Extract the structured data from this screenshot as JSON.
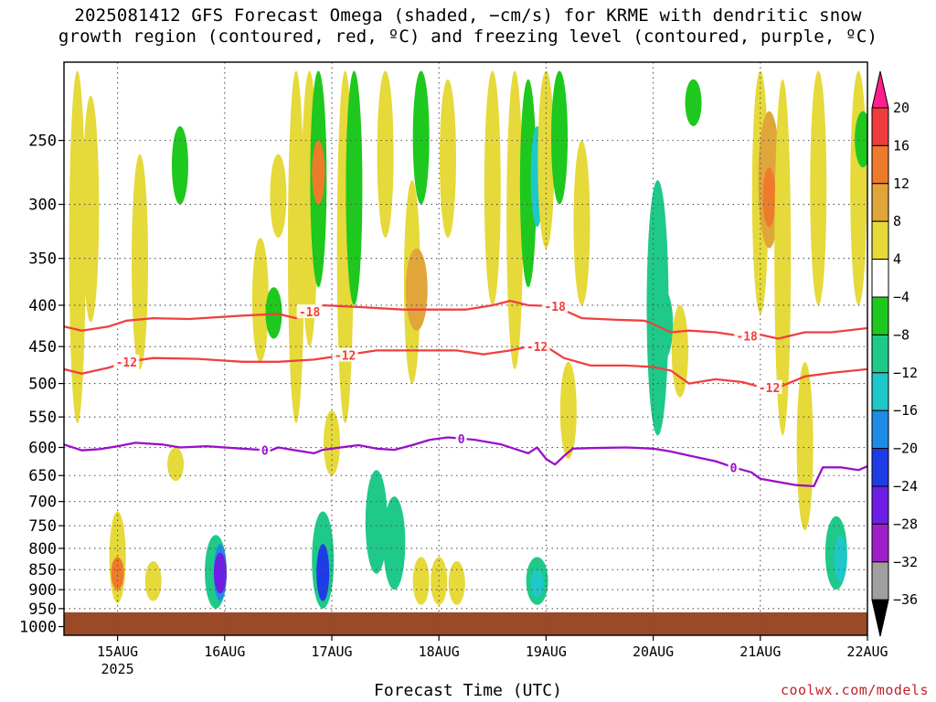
{
  "title": {
    "line1": "2025081412 GFS Forecast Omega (shaded, −cm/s) for KRME with dendritic snow",
    "line2": "growth region (contoured, red, ºC) and freezing level (contoured, purple, ºC)"
  },
  "credit": "coolwx.com/models",
  "chart_data": {
    "type": "heatmap",
    "xlabel": "Forecast Time (UTC)",
    "x_ticks": [
      {
        "label": "15AUG",
        "sublabel": "2025",
        "hour": 12
      },
      {
        "label": "16AUG",
        "hour": 36
      },
      {
        "label": "17AUG",
        "hour": 60
      },
      {
        "label": "18AUG",
        "hour": 84
      },
      {
        "label": "19AUG",
        "hour": 108
      },
      {
        "label": "20AUG",
        "hour": 132
      },
      {
        "label": "21AUG",
        "hour": 156
      },
      {
        "label": "22AUG",
        "hour": 180
      }
    ],
    "x_range_hours": [
      0,
      180
    ],
    "y_axis": "pressure (hPa)",
    "y_ticks": [
      250,
      300,
      350,
      400,
      450,
      500,
      550,
      600,
      650,
      700,
      750,
      800,
      850,
      900,
      950,
      1000
    ],
    "y_range": [
      200,
      1025
    ],
    "y_scale": "log",
    "grid": true,
    "colorbar": {
      "labels": [
        "20",
        "16",
        "12",
        "8",
        "4",
        "−4",
        "−8",
        "−12",
        "−16",
        "−20",
        "−24",
        "−28",
        "−32",
        "−36"
      ],
      "colors": [
        "#ff1e8c",
        "#f03c3c",
        "#ee7b2c",
        "#e0a63a",
        "#e6d93a",
        "#ffffff",
        "#1ec81e",
        "#1fc98a",
        "#1ec8c8",
        "#1e8ce6",
        "#1e3ce6",
        "#6e1ee6",
        "#a01ec8",
        "#a0a0a0",
        "#000000"
      ]
    },
    "shading": [
      {
        "hour": 3,
        "p_top": 205,
        "p_bot": 560,
        "value": 5
      },
      {
        "hour": 6,
        "p_top": 220,
        "p_bot": 420,
        "value": 5
      },
      {
        "hour": 12,
        "p_top": 720,
        "p_bot": 935,
        "value": 7
      },
      {
        "hour": 12,
        "p_top": 820,
        "p_bot": 900,
        "value": 14
      },
      {
        "hour": 17,
        "p_top": 260,
        "p_bot": 480,
        "value": 5
      },
      {
        "hour": 20,
        "p_top": 830,
        "p_bot": 930,
        "value": 5
      },
      {
        "hour": 25,
        "p_top": 600,
        "p_bot": 660,
        "value": 5
      },
      {
        "hour": 26,
        "p_top": 240,
        "p_bot": 300,
        "value": -5
      },
      {
        "hour": 34,
        "p_top": 770,
        "p_bot": 950,
        "value": -9
      },
      {
        "hour": 35,
        "p_top": 790,
        "p_bot": 930,
        "value": -17
      },
      {
        "hour": 35,
        "p_top": 810,
        "p_bot": 910,
        "value": -26
      },
      {
        "hour": 44,
        "p_top": 330,
        "p_bot": 470,
        "value": 5
      },
      {
        "hour": 47,
        "p_top": 380,
        "p_bot": 440,
        "value": -5
      },
      {
        "hour": 48,
        "p_top": 260,
        "p_bot": 330,
        "value": 5
      },
      {
        "hour": 52,
        "p_top": 205,
        "p_bot": 560,
        "value": 5
      },
      {
        "hour": 55,
        "p_top": 205,
        "p_bot": 450,
        "value": 6
      },
      {
        "hour": 57,
        "p_top": 205,
        "p_bot": 380,
        "value": -5
      },
      {
        "hour": 57,
        "p_top": 250,
        "p_bot": 300,
        "value": 12
      },
      {
        "hour": 58,
        "p_top": 720,
        "p_bot": 950,
        "value": -9
      },
      {
        "hour": 58,
        "p_top": 790,
        "p_bot": 930,
        "value": -22
      },
      {
        "hour": 60,
        "p_top": 540,
        "p_bot": 650,
        "value": 5
      },
      {
        "hour": 63,
        "p_top": 205,
        "p_bot": 560,
        "value": 5
      },
      {
        "hour": 65,
        "p_top": 205,
        "p_bot": 400,
        "value": -5
      },
      {
        "hour": 70,
        "p_top": 640,
        "p_bot": 860,
        "value": -10
      },
      {
        "hour": 72,
        "p_top": 205,
        "p_bot": 330,
        "value": 5
      },
      {
        "hour": 74,
        "p_top": 690,
        "p_bot": 900,
        "value": -8
      },
      {
        "hour": 78,
        "p_top": 280,
        "p_bot": 500,
        "value": 6
      },
      {
        "hour": 79,
        "p_top": 340,
        "p_bot": 430,
        "value": 10
      },
      {
        "hour": 80,
        "p_top": 205,
        "p_bot": 300,
        "value": -5
      },
      {
        "hour": 80,
        "p_top": 820,
        "p_bot": 940,
        "value": 6
      },
      {
        "hour": 84,
        "p_top": 820,
        "p_bot": 940,
        "value": 7
      },
      {
        "hour": 86,
        "p_top": 210,
        "p_bot": 330,
        "value": 5
      },
      {
        "hour": 88,
        "p_top": 830,
        "p_bot": 940,
        "value": 5
      },
      {
        "hour": 96,
        "p_top": 205,
        "p_bot": 400,
        "value": 5
      },
      {
        "hour": 101,
        "p_top": 205,
        "p_bot": 480,
        "value": 5
      },
      {
        "hour": 104,
        "p_top": 210,
        "p_bot": 380,
        "value": -6
      },
      {
        "hour": 106,
        "p_top": 240,
        "p_bot": 320,
        "value": -14
      },
      {
        "hour": 106,
        "p_top": 820,
        "p_bot": 940,
        "value": -9
      },
      {
        "hour": 106,
        "p_top": 850,
        "p_bot": 920,
        "value": -14
      },
      {
        "hour": 108,
        "p_top": 205,
        "p_bot": 340,
        "value": 5
      },
      {
        "hour": 111,
        "p_top": 205,
        "p_bot": 300,
        "value": -5
      },
      {
        "hour": 113,
        "p_top": 470,
        "p_bot": 620,
        "value": 5
      },
      {
        "hour": 116,
        "p_top": 250,
        "p_bot": 400,
        "value": 5
      },
      {
        "hour": 133,
        "p_top": 280,
        "p_bot": 580,
        "value": -8
      },
      {
        "hour": 134,
        "p_top": 380,
        "p_bot": 470,
        "value": -11
      },
      {
        "hour": 138,
        "p_top": 400,
        "p_bot": 520,
        "value": 6
      },
      {
        "hour": 141,
        "p_top": 210,
        "p_bot": 240,
        "value": -6
      },
      {
        "hour": 156,
        "p_top": 205,
        "p_bot": 410,
        "value": 5
      },
      {
        "hour": 158,
        "p_top": 230,
        "p_bot": 340,
        "value": 10
      },
      {
        "hour": 158,
        "p_top": 270,
        "p_bot": 320,
        "value": 13
      },
      {
        "hour": 161,
        "p_top": 210,
        "p_bot": 580,
        "value": 5
      },
      {
        "hour": 166,
        "p_top": 470,
        "p_bot": 760,
        "value": 5
      },
      {
        "hour": 169,
        "p_top": 205,
        "p_bot": 400,
        "value": 5
      },
      {
        "hour": 173,
        "p_top": 730,
        "p_bot": 900,
        "value": -9
      },
      {
        "hour": 174,
        "p_top": 770,
        "p_bot": 880,
        "value": -13
      },
      {
        "hour": 178,
        "p_top": 205,
        "p_bot": 400,
        "value": 5
      },
      {
        "hour": 179,
        "p_top": 230,
        "p_bot": 270,
        "value": -6
      }
    ],
    "ground": {
      "p_top": 960,
      "color": "#9b4a28"
    },
    "contours": [
      {
        "level": -18,
        "color": "#f04040",
        "label": "-18",
        "points": [
          [
            0,
            425
          ],
          [
            4,
            430
          ],
          [
            10,
            425
          ],
          [
            14,
            418
          ],
          [
            20,
            415
          ],
          [
            28,
            416
          ],
          [
            40,
            412
          ],
          [
            48,
            410
          ],
          [
            52,
            415
          ],
          [
            56,
            405
          ],
          [
            58,
            400
          ],
          [
            66,
            402
          ],
          [
            76,
            405
          ],
          [
            84,
            405
          ],
          [
            90,
            405
          ],
          [
            96,
            400
          ],
          [
            100,
            395
          ],
          [
            104,
            400
          ],
          [
            110,
            401
          ],
          [
            116,
            415
          ],
          [
            124,
            417
          ],
          [
            130,
            418
          ],
          [
            132,
            422
          ],
          [
            136,
            432
          ],
          [
            140,
            430
          ],
          [
            146,
            432
          ],
          [
            152,
            437
          ],
          [
            156,
            435
          ],
          [
            160,
            440
          ],
          [
            166,
            432
          ],
          [
            172,
            432
          ],
          [
            180,
            427
          ]
        ],
        "labels_at": [
          55,
          110,
          153
        ]
      },
      {
        "level": -12,
        "color": "#f04040",
        "label": "-12",
        "points": [
          [
            0,
            480
          ],
          [
            4,
            486
          ],
          [
            10,
            478
          ],
          [
            14,
            470
          ],
          [
            20,
            465
          ],
          [
            30,
            466
          ],
          [
            40,
            470
          ],
          [
            48,
            470
          ],
          [
            56,
            467
          ],
          [
            62,
            462
          ],
          [
            70,
            455
          ],
          [
            80,
            455
          ],
          [
            88,
            455
          ],
          [
            94,
            460
          ],
          [
            100,
            455
          ],
          [
            104,
            450
          ],
          [
            108,
            450
          ],
          [
            112,
            465
          ],
          [
            118,
            475
          ],
          [
            126,
            475
          ],
          [
            132,
            477
          ],
          [
            136,
            482
          ],
          [
            140,
            500
          ],
          [
            146,
            494
          ],
          [
            152,
            498
          ],
          [
            156,
            505
          ],
          [
            160,
            506
          ],
          [
            166,
            490
          ],
          [
            172,
            485
          ],
          [
            180,
            480
          ]
        ],
        "labels_at": [
          14,
          63,
          106,
          158
        ]
      },
      {
        "level": 0,
        "color": "#9a10c8",
        "label": "0",
        "points": [
          [
            0,
            595
          ],
          [
            4,
            605
          ],
          [
            8,
            603
          ],
          [
            12,
            598
          ],
          [
            16,
            592
          ],
          [
            22,
            595
          ],
          [
            26,
            600
          ],
          [
            32,
            598
          ],
          [
            38,
            601
          ],
          [
            44,
            604
          ],
          [
            46,
            606
          ],
          [
            48,
            600
          ],
          [
            52,
            605
          ],
          [
            56,
            610
          ],
          [
            58,
            604
          ],
          [
            62,
            600
          ],
          [
            66,
            596
          ],
          [
            70,
            602
          ],
          [
            74,
            604
          ],
          [
            78,
            596
          ],
          [
            82,
            587
          ],
          [
            86,
            583
          ],
          [
            92,
            587
          ],
          [
            98,
            595
          ],
          [
            102,
            605
          ],
          [
            104,
            610
          ],
          [
            106,
            600
          ],
          [
            108,
            620
          ],
          [
            110,
            630
          ],
          [
            112,
            615
          ],
          [
            114,
            602
          ],
          [
            118,
            601
          ],
          [
            126,
            600
          ],
          [
            132,
            602
          ],
          [
            136,
            607
          ],
          [
            140,
            614
          ],
          [
            146,
            624
          ],
          [
            150,
            635
          ],
          [
            154,
            644
          ],
          [
            156,
            656
          ],
          [
            160,
            662
          ],
          [
            164,
            668
          ],
          [
            168,
            670
          ],
          [
            170,
            635
          ],
          [
            174,
            635
          ],
          [
            178,
            640
          ],
          [
            180,
            633
          ]
        ],
        "labels_at": [
          45,
          89,
          150
        ]
      }
    ]
  }
}
